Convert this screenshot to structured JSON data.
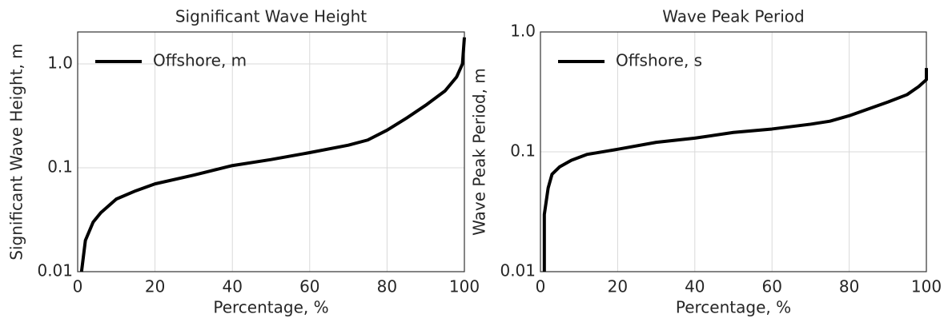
{
  "chart_data": [
    {
      "type": "line",
      "title": "Significant Wave Height",
      "xlabel": "Percentage, %",
      "ylabel": "Significant Wave Height, m",
      "x": [
        1,
        2,
        4,
        6,
        10,
        15,
        20,
        30,
        40,
        50,
        60,
        70,
        75,
        80,
        85,
        90,
        95,
        98,
        99.5,
        100
      ],
      "series": [
        {
          "name": "Offshore, m",
          "color": "#000000",
          "values": [
            0.01,
            0.02,
            0.03,
            0.037,
            0.05,
            0.06,
            0.07,
            0.085,
            0.105,
            0.12,
            0.14,
            0.165,
            0.185,
            0.23,
            0.3,
            0.4,
            0.55,
            0.75,
            1.0,
            1.8
          ]
        }
      ],
      "xlim": [
        0,
        100
      ],
      "xticks": [
        0,
        20,
        40,
        60,
        80,
        100
      ],
      "ylim": [
        0.01,
        2.03
      ],
      "yticks": [
        0.01,
        0.1,
        {
          "value": 1,
          "label": "1.0"
        }
      ],
      "log_y": true,
      "grid": true,
      "legend": "upper left"
    },
    {
      "type": "line",
      "title": "Wave Peak Period",
      "xlabel": "Percentage, %",
      "ylabel": "Wave Peak Period, m",
      "x": [
        1,
        1,
        2,
        3,
        5,
        8,
        12,
        20,
        30,
        40,
        50,
        60,
        70,
        75,
        80,
        90,
        95,
        98,
        100,
        100
      ],
      "series": [
        {
          "name": "Offshore, s",
          "color": "#000000",
          "values": [
            0.01,
            0.03,
            0.05,
            0.065,
            0.075,
            0.085,
            0.095,
            0.105,
            0.12,
            0.13,
            0.145,
            0.155,
            0.17,
            0.18,
            0.2,
            0.26,
            0.3,
            0.35,
            0.4,
            0.5
          ]
        }
      ],
      "xlim": [
        0,
        100
      ],
      "xticks": [
        0,
        20,
        40,
        60,
        80,
        100
      ],
      "ylim": [
        0.01,
        1
      ],
      "yticks": [
        0.01,
        0.1,
        {
          "value": 1,
          "label": "1.0"
        }
      ],
      "log_y": true,
      "grid": true,
      "legend": "upper left"
    }
  ]
}
